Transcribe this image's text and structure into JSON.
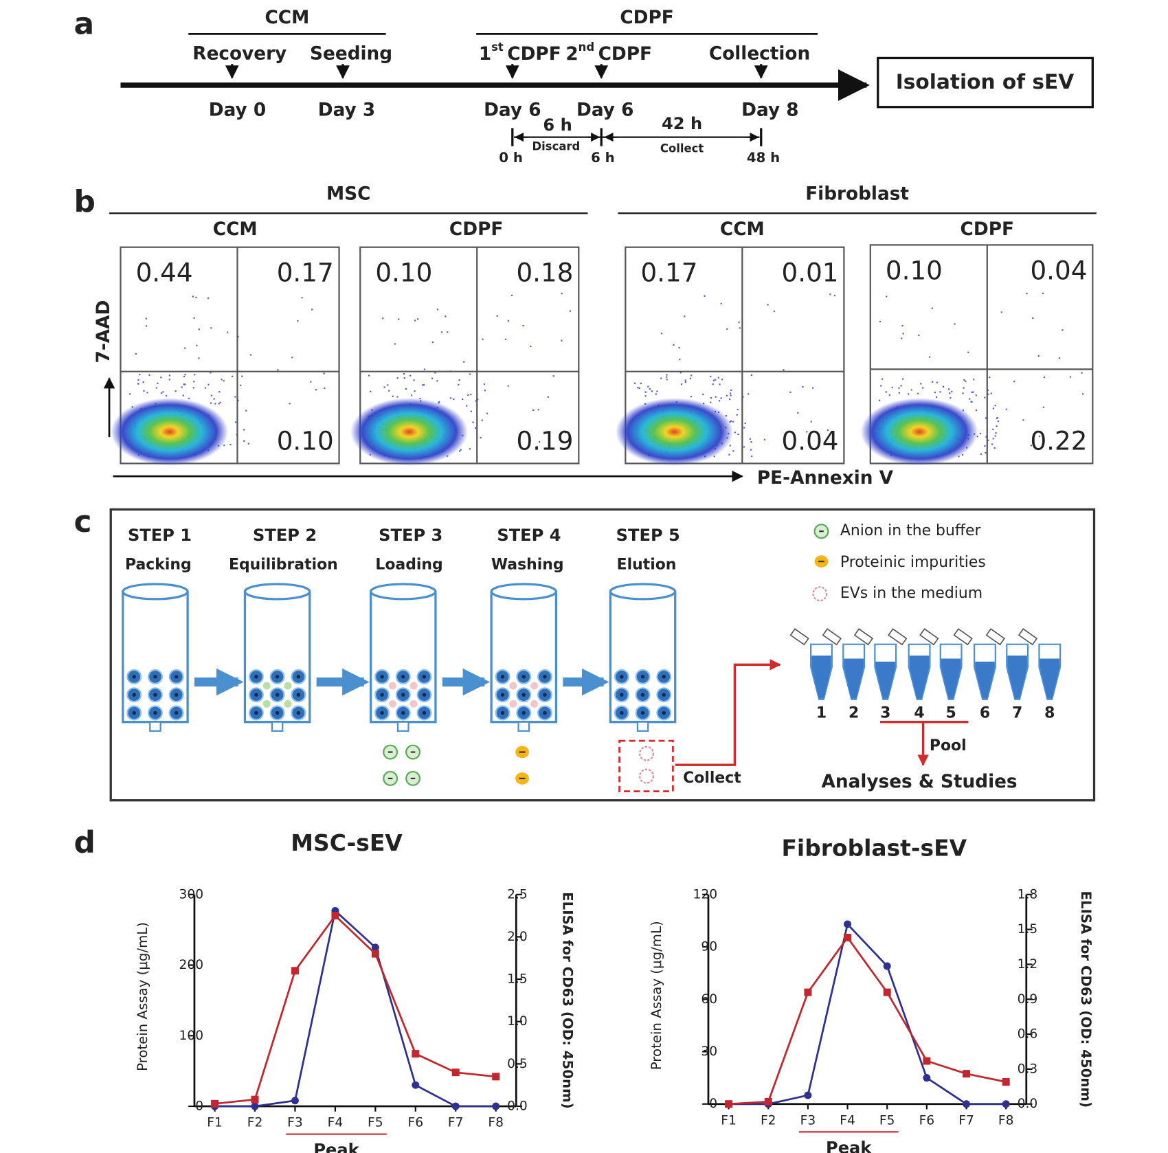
{
  "panel_a": {
    "label": "a",
    "phases": [
      {
        "title": "CCM"
      },
      {
        "title": "CDPF"
      }
    ],
    "events": [
      {
        "name": "Recovery",
        "day": "Day 0"
      },
      {
        "name": "Seeding",
        "day": "Day 3"
      },
      {
        "ordinal": "1",
        "suffix": "st",
        "name": "CDPF",
        "day": "Day 6"
      },
      {
        "ordinal": "2",
        "suffix": "nd",
        "name": "CDPF",
        "day": "Day 6"
      },
      {
        "name": "Collection",
        "day": "Day 8"
      }
    ],
    "intervals": [
      {
        "duration": "6 h",
        "action": "Discard"
      },
      {
        "duration": "42 h",
        "action": "Collect"
      }
    ],
    "timepoints": [
      "0 h",
      "6 h",
      "48 h"
    ],
    "result": "Isolation of sEV"
  },
  "panel_b": {
    "label": "b",
    "y_label": "7-AAD",
    "x_label": "PE-Annexin V",
    "groups": [
      {
        "title": "MSC",
        "plots": [
          {
            "title": "CCM",
            "upper_left": "0.44",
            "upper_right": "0.17",
            "lower_right": "0.10"
          },
          {
            "title": "CDPF",
            "upper_left": "0.10",
            "upper_right": "0.18",
            "lower_right": "0.19"
          }
        ]
      },
      {
        "title": "Fibroblast",
        "plots": [
          {
            "title": "CCM",
            "upper_left": "0.17",
            "upper_right": "0.01",
            "lower_right": "0.04"
          },
          {
            "title": "CDPF",
            "upper_left": "0.10",
            "upper_right": "0.04",
            "lower_right": "0.22"
          }
        ]
      }
    ]
  },
  "panel_c": {
    "label": "c",
    "steps": [
      {
        "step": "STEP 1",
        "name": "Packing"
      },
      {
        "step": "STEP 2",
        "name": "Equilibration"
      },
      {
        "step": "STEP 3",
        "name": "Loading"
      },
      {
        "step": "STEP 4",
        "name": "Washing"
      },
      {
        "step": "STEP 5",
        "name": "Elution"
      }
    ],
    "legend": [
      "Anion in the buffer",
      "Proteinic impurities",
      "EVs in the medium"
    ],
    "tubes": [
      "1",
      "2",
      "3",
      "4",
      "5",
      "6",
      "7",
      "8"
    ],
    "collect": "Collect",
    "pool": "Pool",
    "outcome": "Analyses & Studies"
  },
  "panel_d": {
    "label": "d"
  },
  "chart_data": [
    {
      "type": "line",
      "title": "MSC-sEV",
      "categories": [
        "F1",
        "F2",
        "F3",
        "F4",
        "F5",
        "F6",
        "F7",
        "F8"
      ],
      "ylabel": "Protein Assay (μg/mL)",
      "y2label": "ELISA for CD63 (OD: 450nm)",
      "ylim": [
        0,
        300
      ],
      "yticks": [
        0,
        100,
        200,
        300
      ],
      "y2lim": [
        0,
        2.5
      ],
      "y2ticks": [
        {
          "value": 0,
          "label": "0.0"
        },
        0.5,
        {
          "value": 1,
          "label": "1.0"
        },
        1.5,
        {
          "value": 2,
          "label": "2.0"
        },
        2.5
      ],
      "series": [
        {
          "color": "#2e3192",
          "marker": "circle",
          "values": [
            0,
            0,
            8,
            277,
            225,
            30,
            0,
            0
          ]
        },
        {
          "color": "#c1272d",
          "marker": "square",
          "axis": "y2",
          "values": [
            0.03,
            0.08,
            1.6,
            2.25,
            1.8,
            0.62,
            0.4,
            0.35
          ]
        }
      ],
      "annotation": "Peak"
    },
    {
      "type": "line",
      "title": "Fibroblast-sEV",
      "categories": [
        "F1",
        "F2",
        "F3",
        "F4",
        "F5",
        "F6",
        "F7",
        "F8"
      ],
      "ylabel": "Protein Assay (μg/mL)",
      "y2label": "ELISA for CD63 (OD: 450nm)",
      "ylim": [
        0,
        120
      ],
      "yticks": [
        0,
        30,
        60,
        90,
        120
      ],
      "y2lim": [
        0,
        1.8
      ],
      "y2ticks": [
        {
          "value": 0,
          "label": "0.0"
        },
        0.3,
        0.6,
        0.9,
        1.2,
        1.5,
        1.8
      ],
      "series": [
        {
          "color": "#2e3192",
          "marker": "circle",
          "values": [
            0,
            0,
            5,
            103,
            79,
            15,
            0,
            0
          ]
        },
        {
          "color": "#c1272d",
          "marker": "square",
          "axis": "y2",
          "values": [
            0,
            0.02,
            0.96,
            1.43,
            0.96,
            0.37,
            0.26,
            0.19
          ]
        }
      ],
      "annotation": "Peak"
    }
  ]
}
